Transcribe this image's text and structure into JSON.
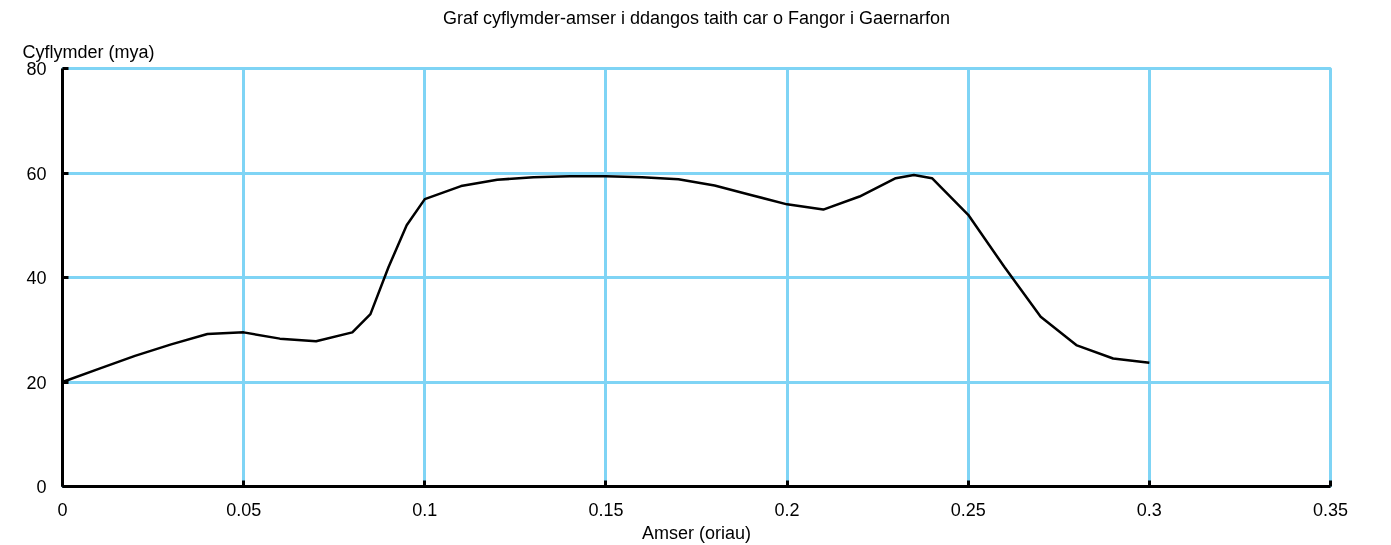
{
  "chart_data": {
    "type": "line",
    "title": "Graf cyflymder-amser i ddangos taith car o Fangor i Gaernarfon",
    "xlabel": "Amser (oriau)",
    "ylabel": "Cyflymder (mya)",
    "x": [
      0,
      0.01,
      0.02,
      0.03,
      0.04,
      0.05,
      0.06,
      0.07,
      0.08,
      0.085,
      0.09,
      0.095,
      0.1,
      0.11,
      0.12,
      0.13,
      0.14,
      0.15,
      0.16,
      0.17,
      0.18,
      0.19,
      0.2,
      0.21,
      0.22,
      0.23,
      0.235,
      0.24,
      0.25,
      0.26,
      0.27,
      0.28,
      0.29,
      0.3
    ],
    "series": [
      {
        "color": "#000000",
        "values": [
          20,
          22.5,
          25,
          27.2,
          29.2,
          29.5,
          28.3,
          27.8,
          29.5,
          33,
          42,
          50,
          55,
          57.5,
          58.7,
          59.2,
          59.4,
          59.4,
          59.2,
          58.8,
          57.6,
          55.8,
          54,
          53,
          55.5,
          59,
          59.6,
          59,
          52,
          42,
          32.5,
          27,
          24.5,
          23.7
        ]
      }
    ],
    "xlim": [
      0,
      0.35
    ],
    "xticks": [
      0,
      0.05,
      0.1,
      0.15,
      0.2,
      0.25,
      0.3,
      0.35
    ],
    "ylim": [
      0,
      80
    ],
    "yticks": [
      0,
      20,
      40,
      60,
      80
    ],
    "grid": true,
    "marker": "none",
    "line_style": "solid"
  }
}
